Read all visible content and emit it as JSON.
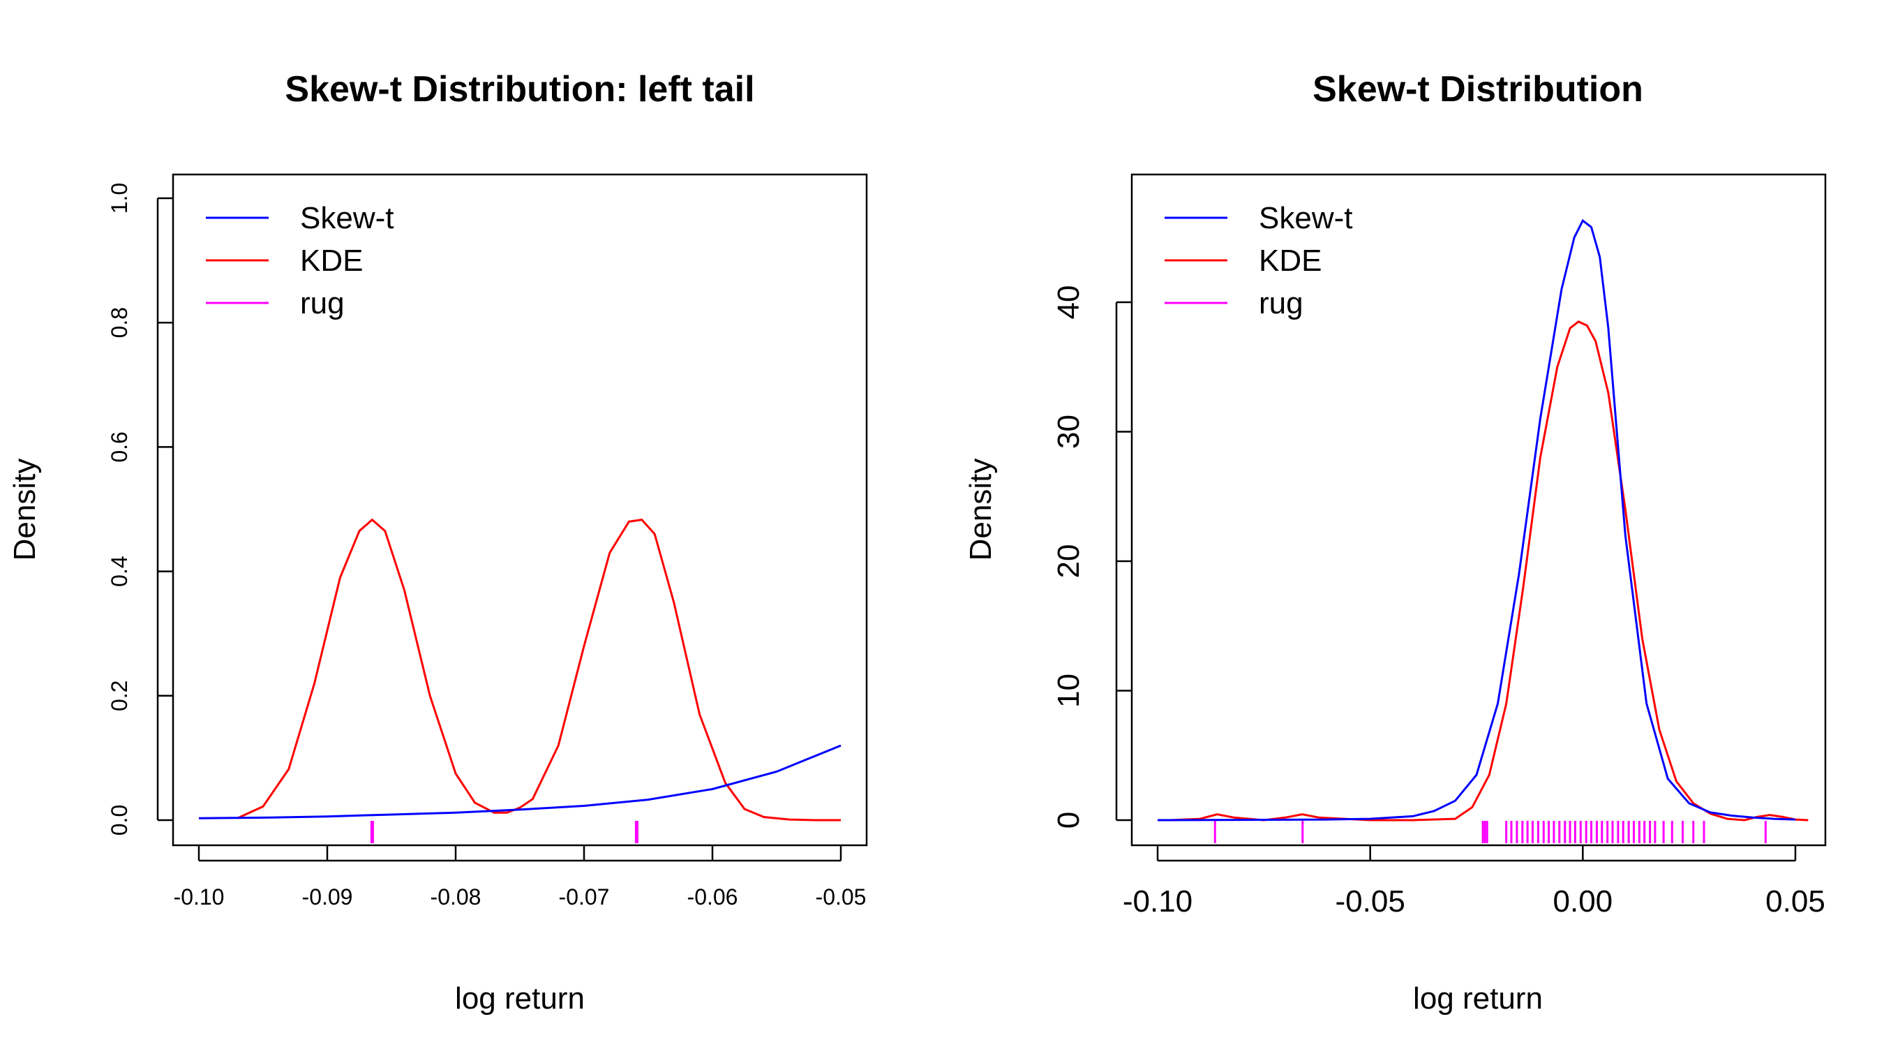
{
  "chart_data": [
    {
      "type": "line",
      "title": "Skew-t Distribution: left tail",
      "xlabel": "log return",
      "ylabel": "Density",
      "xlim": [
        -0.1,
        -0.05
      ],
      "ylim": [
        0,
        1.0
      ],
      "x_ticks": [
        "-0.10",
        "-0.09",
        "-0.08",
        "-0.07",
        "-0.06",
        "-0.05"
      ],
      "y_ticks": [
        "0.0",
        "0.2",
        "0.4",
        "0.6",
        "0.8",
        "1.0"
      ],
      "legend": {
        "position": "top-left",
        "entries": [
          "Skew-t",
          "KDE",
          "rug"
        ]
      },
      "colors": {
        "skewt": "#0000ff",
        "kde": "#ff0000",
        "rug": "#ff00ff"
      },
      "series": [
        {
          "name": "Skew-t",
          "x": [
            -0.1,
            -0.095,
            -0.09,
            -0.085,
            -0.08,
            -0.075,
            -0.07,
            -0.065,
            -0.06,
            -0.055,
            -0.05
          ],
          "y": [
            0.003,
            0.004,
            0.006,
            0.009,
            0.012,
            0.017,
            0.023,
            0.033,
            0.05,
            0.078,
            0.12
          ]
        },
        {
          "name": "KDE",
          "x": [
            -0.097,
            -0.095,
            -0.093,
            -0.091,
            -0.089,
            -0.0875,
            -0.0865,
            -0.0855,
            -0.084,
            -0.082,
            -0.08,
            -0.0785,
            -0.077,
            -0.076,
            -0.075,
            -0.074,
            -0.072,
            -0.07,
            -0.068,
            -0.0665,
            -0.0655,
            -0.0645,
            -0.063,
            -0.061,
            -0.059,
            -0.0575,
            -0.056,
            -0.054,
            -0.052,
            -0.05
          ],
          "y": [
            0.003,
            0.022,
            0.082,
            0.22,
            0.39,
            0.465,
            0.483,
            0.465,
            0.37,
            0.2,
            0.075,
            0.028,
            0.012,
            0.012,
            0.02,
            0.034,
            0.12,
            0.28,
            0.43,
            0.48,
            0.483,
            0.46,
            0.35,
            0.17,
            0.06,
            0.018,
            0.005,
            0.001,
            0.0,
            0.0
          ]
        }
      ],
      "rug": [
        -0.0865,
        -0.0659
      ]
    },
    {
      "type": "line",
      "title": "Skew-t Distribution",
      "xlabel": "log return",
      "ylabel": "Density",
      "xlim": [
        -0.1,
        0.05
      ],
      "ylim": [
        0,
        45
      ],
      "x_ticks": [
        "-0.10",
        "-0.05",
        "0.00",
        "0.05"
      ],
      "y_ticks": [
        "0",
        "10",
        "20",
        "30",
        "40"
      ],
      "legend": {
        "position": "top-left",
        "entries": [
          "Skew-t",
          "KDE",
          "rug"
        ]
      },
      "colors": {
        "skewt": "#0000ff",
        "kde": "#ff0000",
        "rug": "#ff00ff"
      },
      "series": [
        {
          "name": "Skew-t",
          "x": [
            -0.1,
            -0.08,
            -0.06,
            -0.05,
            -0.04,
            -0.035,
            -0.03,
            -0.025,
            -0.02,
            -0.015,
            -0.01,
            -0.005,
            -0.002,
            0.0,
            0.002,
            0.004,
            0.006,
            0.008,
            0.01,
            0.015,
            0.02,
            0.025,
            0.03,
            0.035,
            0.04,
            0.045,
            0.05
          ],
          "y": [
            0.0,
            0.02,
            0.05,
            0.1,
            0.3,
            0.7,
            1.5,
            3.5,
            9.0,
            19.0,
            31.0,
            41.0,
            45.0,
            46.3,
            45.8,
            43.5,
            38.0,
            30.0,
            22.0,
            9.0,
            3.2,
            1.3,
            0.6,
            0.35,
            0.2,
            0.1,
            0.05
          ]
        },
        {
          "name": "KDE",
          "x": [
            -0.097,
            -0.09,
            -0.086,
            -0.082,
            -0.075,
            -0.07,
            -0.066,
            -0.062,
            -0.05,
            -0.04,
            -0.03,
            -0.026,
            -0.022,
            -0.018,
            -0.014,
            -0.01,
            -0.006,
            -0.003,
            -0.001,
            0.001,
            0.003,
            0.006,
            0.01,
            0.014,
            0.018,
            0.022,
            0.026,
            0.03,
            0.034,
            0.038,
            0.041,
            0.044,
            0.047,
            0.05,
            0.053
          ],
          "y": [
            0.0,
            0.1,
            0.45,
            0.2,
            0.0,
            0.2,
            0.45,
            0.2,
            0.0,
            0.0,
            0.1,
            1.0,
            3.5,
            9.0,
            18.0,
            28.0,
            35.0,
            38.0,
            38.5,
            38.2,
            37.0,
            33.0,
            24.0,
            14.0,
            7.0,
            3.0,
            1.3,
            0.5,
            0.1,
            0.0,
            0.25,
            0.4,
            0.25,
            0.05,
            0.0
          ]
        }
      ],
      "rug": [
        -0.0865,
        -0.0659,
        -0.0235,
        -0.023,
        -0.0225,
        -0.018,
        -0.0168,
        -0.0155,
        -0.0142,
        -0.013,
        -0.0118,
        -0.0105,
        -0.0092,
        -0.008,
        -0.0068,
        -0.0055,
        -0.0042,
        -0.003,
        -0.0018,
        -0.0005,
        0.0008,
        0.002,
        0.0033,
        0.0045,
        0.0058,
        0.007,
        0.0083,
        0.0095,
        0.0108,
        0.012,
        0.0133,
        0.0145,
        0.0158,
        0.017,
        0.019,
        0.021,
        0.0235,
        0.026,
        0.0285,
        0.043
      ]
    }
  ]
}
